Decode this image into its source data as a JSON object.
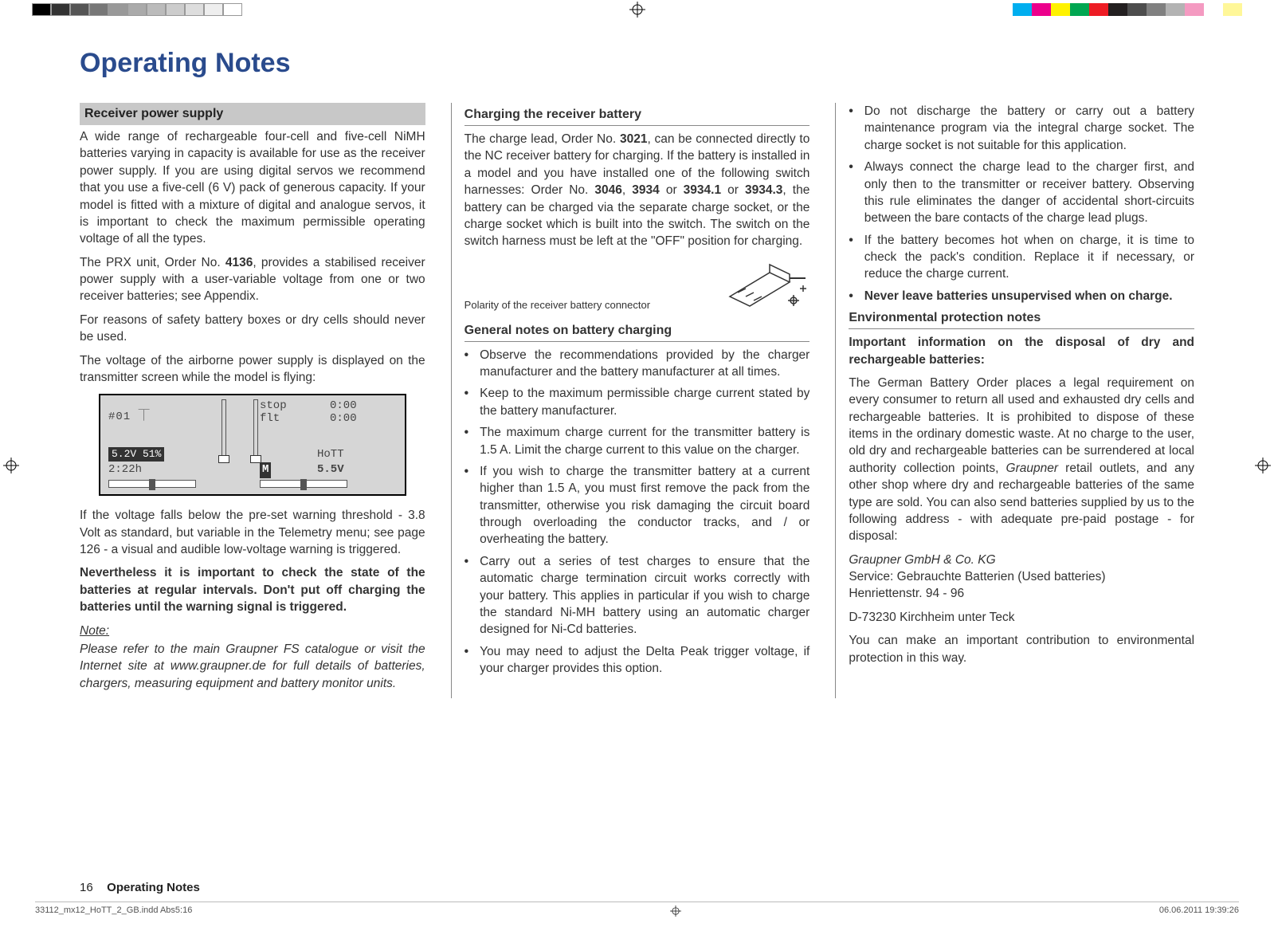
{
  "printbar_left": [
    "#000000",
    "#333333",
    "#555555",
    "#777777",
    "#999999",
    "#aaaaaa",
    "#bbbbbb",
    "#cccccc",
    "#dddddd",
    "#eeeeee",
    "#ffffff"
  ],
  "printbar_right": [
    "#00aeef",
    "#ec008c",
    "#fff200",
    "#00a651",
    "#ed1c24",
    "#231f20",
    "#4d4d4d",
    "#808080",
    "#b3b3b3",
    "#f49ac1",
    "#ffffff",
    "#fff799"
  ],
  "title": "Operating Notes",
  "col1": {
    "h1": "Receiver power supply",
    "p1": "A wide range of rechargeable four-cell and five-cell NiMH batteries varying in capacity is available for use as the receiver power supply. If you are using digital servos we recommend that you use a five-cell (6 V) pack of generous capacity. If your model is fitted with a mixture of digital and analogue servos, it is important to check the maximum permissible operating voltage of all the types.",
    "p2a": "The PRX unit, Order No. ",
    "p2b": "4136",
    "p2c": ", provides a stabilised receiver power supply with a user-variable voltage from one or two receiver batteries; see Appendix.",
    "p3": "For reasons of safety battery boxes or dry cells should never be used.",
    "p4": "The voltage of the airborne power supply is displayed on the transmitter screen while the model is flying:",
    "lcd": {
      "model": "#01 ⏉",
      "batt": "5.2V   51%",
      "time": "2:22h",
      "stop": "stop",
      "flt": "flt",
      "t0a": "0:00",
      "t0b": "0:00",
      "hott": "HoTT",
      "v55": "5.5V",
      "m": "M"
    },
    "p5": "If the voltage falls below the pre-set warning threshold - 3.8 Volt as standard, but variable in the Telemetry menu; see page 126 - a visual and audible low-voltage warning is triggered.",
    "p6": "Nevertheless it is important to check the state of the batteries at regular intervals. Don't put off charging the batteries until the warning signal is triggered.",
    "note_label": "Note:",
    "note": "Please refer to the main Graupner FS catalogue or visit the Internet site at www.graupner.de for full details of batteries, chargers, measuring equipment and battery monitor units."
  },
  "col2": {
    "h1": "Charging the receiver battery",
    "p1": "The charge lead, Order No. 3021, can be connected directly to the NC receiver battery for charging. If the battery is installed in a model and you have installed one of the following switch harnesses: Order No. 3046, 3934 or 3934.1 or 3934.3, the battery can be charged via the separate charge socket, or the charge socket which is built into the switch. The switch on the switch harness must be left at the \"OFF\" position for charging.",
    "caption": "Polarity of the receiver battery connector",
    "h2": "General notes on battery charging",
    "bullets": [
      "Observe the recommendations provided by the charger manufacturer and the battery manufacturer at all times.",
      "Keep to the maximum permissible charge current stated by the battery manufacturer.",
      "The maximum charge current for the transmitter battery is 1.5 A. Limit the charge current to this value on the charger.",
      "If you wish to charge the transmitter battery at a current higher than 1.5 A, you must first remove the pack from the transmitter, otherwise you risk damaging the circuit board through overloading the conductor tracks, and / or overheating the battery.",
      "Carry out a series of test charges to ensure that the automatic charge termination circuit works correctly with your battery. This applies in particular if you wish to charge the standard Ni-MH battery using an automatic charger designed for Ni-Cd batteries.",
      "You may need to adjust the Delta Peak trigger voltage, if your charger provides this option."
    ]
  },
  "col3": {
    "bullets1": [
      "Do not discharge the battery or carry out a battery maintenance program via the integral charge socket. The charge socket is not suitable for this application.",
      "Always connect the charge lead to the charger first, and only then to the transmitter or receiver battery. Observing this rule eliminates the danger of accidental short-circuits between the bare contacts of the charge lead plugs.",
      "If the battery becomes hot when on charge, it is time to check the pack's condition. Replace it if necessary, or reduce the charge current."
    ],
    "bold_bullet": "Never leave batteries unsupervised when on charge.",
    "h1": "Environmental protection notes",
    "p1": "Important information on the disposal of dry and rechargeable batteries:",
    "p2": "The German Battery Order places a legal requirement on every consumer to return all used and exhausted dry cells and rechargeable batteries. It is prohibited to dispose of these items in the ordinary domestic waste. At no charge to the user, old dry and rechargeable batteries can be surrendered at local authority collection points, Graupner retail outlets, and any other shop where dry and rechargeable batteries of the same type are sold. You can also send batteries supplied by us to the following address - with adequate pre-paid postage - for disposal:",
    "addr1": "Graupner GmbH & Co. KG",
    "addr2": "Service: Gebrauchte Batterien (Used batteries)",
    "addr3": "Henriettenstr. 94 - 96",
    "addr4": "D-73230 Kirchheim unter Teck",
    "p3": "You can make an important contribution to environmental protection in this way."
  },
  "footer": {
    "page": "16",
    "section": "Operating Notes",
    "file": "33112_mx12_HoTT_2_GB.indd   Abs5:16",
    "date": "06.06.2011   19:39:26"
  }
}
